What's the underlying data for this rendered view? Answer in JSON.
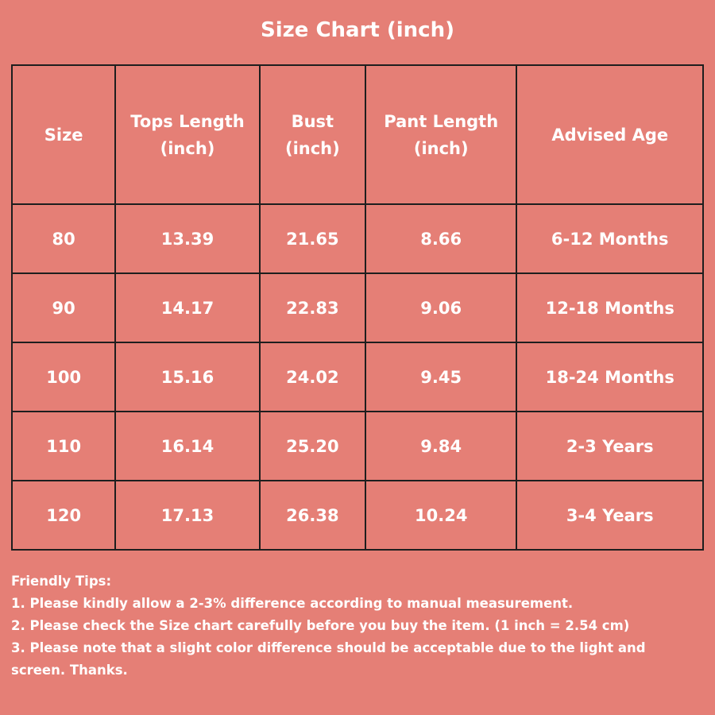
{
  "title": "Size Chart (inch)",
  "table": {
    "headers": [
      [
        "Size"
      ],
      [
        "Tops Length",
        "(inch)"
      ],
      [
        "Bust",
        "(inch)"
      ],
      [
        "Pant Length",
        "(inch)"
      ],
      [
        "Advised Age"
      ]
    ],
    "rows": [
      [
        "80",
        "13.39",
        "21.65",
        "8.66",
        "6-12 Months"
      ],
      [
        "90",
        "14.17",
        "22.83",
        "9.06",
        "12-18 Months"
      ],
      [
        "100",
        "15.16",
        "24.02",
        "9.45",
        "18-24 Months"
      ],
      [
        "110",
        "16.14",
        "25.20",
        "9.84",
        "2-3 Years"
      ],
      [
        "120",
        "17.13",
        "26.38",
        "10.24",
        "3-4 Years"
      ]
    ]
  },
  "tips": {
    "heading": "Friendly Tips:",
    "items": [
      "1. Please kindly allow a 2-3% difference according to manual measurement.",
      "2. Please check the Size chart carefully before you buy the item. (1 inch = 2.54 cm)",
      "3. Please note that a slight color difference should be acceptable due to the light and screen. Thanks."
    ]
  },
  "colors": {
    "background": "#e57f76",
    "text": "#ffffff",
    "border": "#1e1e1e"
  }
}
